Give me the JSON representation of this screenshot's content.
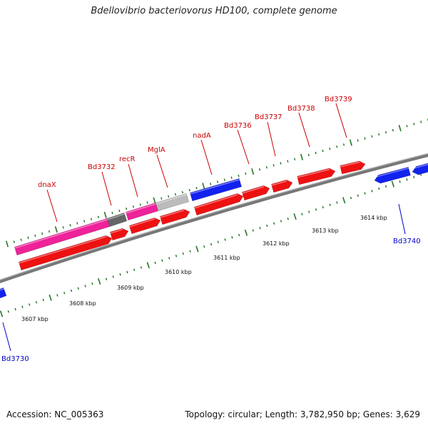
{
  "title": "Bdellovibrio bacteriovorus HD100, complete genome",
  "footer": {
    "accession": "Accession: NC_005363",
    "summary": "Topology: circular; Length: 3,782,950 bp; Genes: 3,629"
  },
  "colors": {
    "forward_cds": "#ee1111",
    "reverse_cds": "#1122ee",
    "rna_magenta": "#ee2299",
    "gray_dark": "#666666",
    "gray_light": "#bbbbbb",
    "backbone": "#777777",
    "tick": "#227722"
  },
  "scale": {
    "labels": [
      "3607 kbp",
      "3608 kbp",
      "3609 kbp",
      "3610 kbp",
      "3611 kbp",
      "3612 kbp",
      "3613 kbp",
      "3614 kbp"
    ]
  },
  "gene_labels": [
    {
      "id": "dnaX",
      "text": "dnaX",
      "strand": "forward"
    },
    {
      "id": "bd3732",
      "text": "Bd3732",
      "strand": "forward"
    },
    {
      "id": "recr",
      "text": "recR",
      "strand": "forward"
    },
    {
      "id": "mgla",
      "text": "MglA",
      "strand": "forward"
    },
    {
      "id": "nada",
      "text": "nadA",
      "strand": "forward"
    },
    {
      "id": "bd3736",
      "text": "Bd3736",
      "strand": "forward"
    },
    {
      "id": "bd3737",
      "text": "Bd3737",
      "strand": "forward"
    },
    {
      "id": "bd3738",
      "text": "Bd3738",
      "strand": "forward"
    },
    {
      "id": "bd3739",
      "text": "Bd3739",
      "strand": "forward"
    },
    {
      "id": "bd3740",
      "text": "Bd3740",
      "strand": "reverse"
    },
    {
      "id": "bd3730",
      "text": "Bd3730",
      "strand": "reverse"
    }
  ]
}
